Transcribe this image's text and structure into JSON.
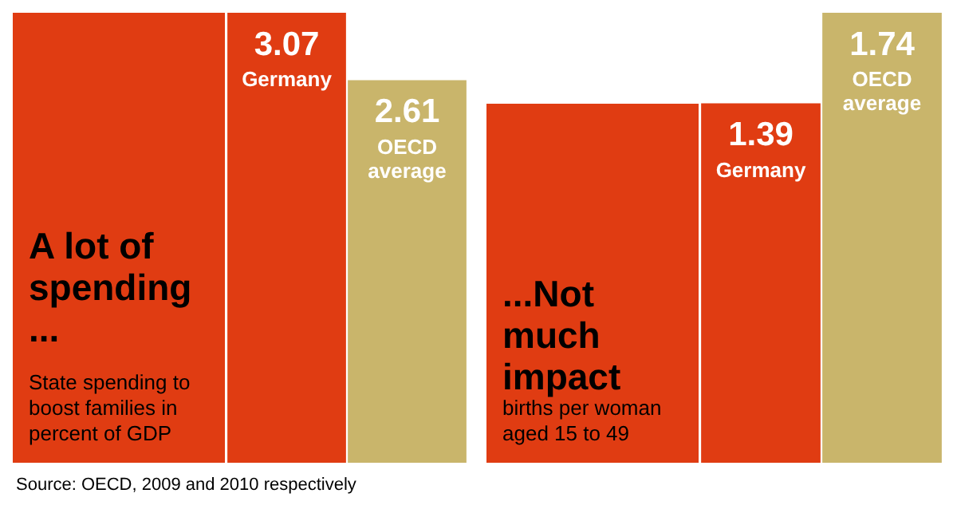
{
  "chart_data": [
    {
      "type": "bar",
      "title": "A lot of spending ...",
      "categories": [
        "Germany",
        "OECD average"
      ],
      "values": [
        3.07,
        2.61
      ],
      "colors": [
        "#e03c12",
        "#c9b56b"
      ],
      "data_labels": true,
      "annotations": [
        "State spending to boost families in percent of GDP",
        "Source: OECD, 2009 and 2010 respectively"
      ]
    },
    {
      "type": "bar",
      "title": "...Not much impact",
      "categories": [
        "Germany",
        "OECD average"
      ],
      "values": [
        1.39,
        1.74
      ],
      "colors": [
        "#e03c12",
        "#c9b56b"
      ],
      "data_labels": true,
      "annotations": [
        "births per woman aged 15 to 49"
      ]
    }
  ]
}
